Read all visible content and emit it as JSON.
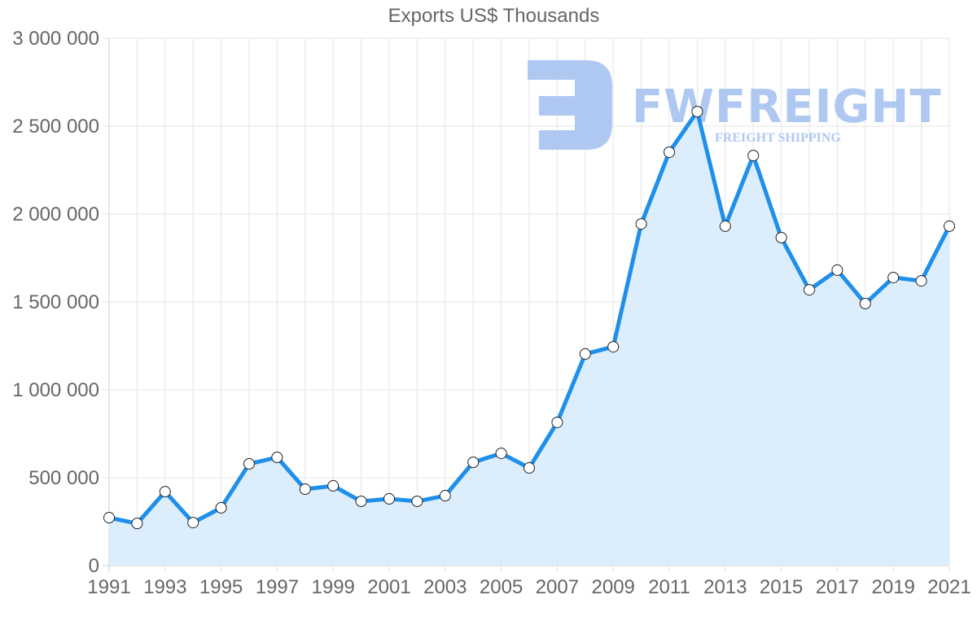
{
  "chart_data": {
    "type": "line",
    "title": "Exports US$ Thousands",
    "xlabel": "",
    "ylabel": "",
    "ylim": [
      0,
      3000000
    ],
    "yticks": [
      0,
      500000,
      1000000,
      1500000,
      2000000,
      2500000,
      3000000
    ],
    "ytick_labels": [
      "0",
      "500 000",
      "1 000 000",
      "1 500 000",
      "2 000 000",
      "2 500 000",
      "3 000 000"
    ],
    "xtick_labels": [
      "1991",
      "1993",
      "1995",
      "1997",
      "1999",
      "2001",
      "2003",
      "2005",
      "2007",
      "2009",
      "2011",
      "2013",
      "2015",
      "2017",
      "2019",
      "2021"
    ],
    "grid": true,
    "legend": "none",
    "fill": true,
    "x": [
      1991,
      1992,
      1993,
      1994,
      1995,
      1996,
      1997,
      1998,
      1999,
      2000,
      2001,
      2002,
      2003,
      2004,
      2005,
      2006,
      2007,
      2008,
      2009,
      2010,
      2011,
      2012,
      2013,
      2014,
      2015,
      2016,
      2017,
      2018,
      2019,
      2020,
      2021
    ],
    "series": [
      {
        "name": "Exports US$ Thousands",
        "values": [
          273000,
          240000,
          421000,
          245000,
          329000,
          579000,
          616000,
          435000,
          454000,
          366000,
          380000,
          366000,
          398000,
          588000,
          639000,
          556000,
          815000,
          1204000,
          1245000,
          1944000,
          2352000,
          2583000,
          1931000,
          2333000,
          1866000,
          1569000,
          1681000,
          1491000,
          1639000,
          1620000,
          1931000
        ]
      }
    ]
  },
  "colors": {
    "line": "#1e8fea",
    "fill": "#d8ebfc",
    "grid": "#e4e4e4",
    "axis": "#cfcfcf",
    "text": "#666666",
    "watermark": "#aec8f2"
  },
  "watermark": {
    "brand": "FWFREIGHT",
    "tagline": "FREIGHT SHIPPING"
  }
}
